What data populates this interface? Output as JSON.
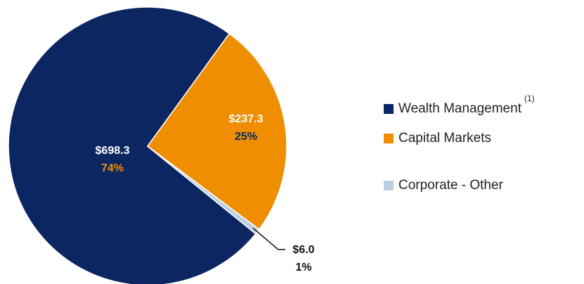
{
  "chart_data": {
    "type": "pie",
    "categories": [
      "Wealth Management",
      "Capital Markets",
      "Corporate - Other"
    ],
    "values": [
      698.3,
      237.3,
      6.0
    ],
    "value_labels": [
      "$698.3",
      "$237.3",
      "$6.0"
    ],
    "percents": [
      74,
      25,
      1
    ],
    "percent_labels": [
      "74%",
      "25%",
      "1%"
    ],
    "colors": [
      "#0c2661",
      "#ee8e00",
      "#b9cee2"
    ],
    "legend_superscript": "(1)",
    "legend": "right"
  }
}
